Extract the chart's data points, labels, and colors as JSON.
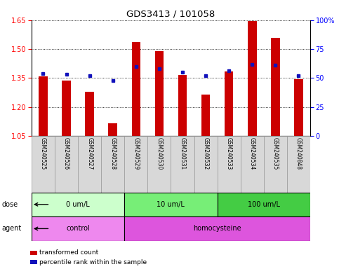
{
  "title": "GDS3413 / 101058",
  "samples": [
    "GSM240525",
    "GSM240526",
    "GSM240527",
    "GSM240528",
    "GSM240529",
    "GSM240530",
    "GSM240531",
    "GSM240532",
    "GSM240533",
    "GSM240534",
    "GSM240535",
    "GSM240848"
  ],
  "transformed_count": [
    1.36,
    1.335,
    1.28,
    1.115,
    1.535,
    1.49,
    1.365,
    1.265,
    1.385,
    1.645,
    1.56,
    1.345
  ],
  "percentile_rank": [
    54,
    53,
    52,
    48,
    60,
    58,
    55,
    52,
    56,
    62,
    61,
    52
  ],
  "ymin": 1.05,
  "ymax": 1.65,
  "y_ticks_left": [
    1.05,
    1.2,
    1.35,
    1.5,
    1.65
  ],
  "y_ticks_right": [
    0,
    25,
    50,
    75,
    100
  ],
  "bar_color": "#cc0000",
  "dot_color": "#1111bb",
  "dose_groups": [
    {
      "label": "0 um/L",
      "start": 0,
      "end": 4,
      "color": "#ccffcc"
    },
    {
      "label": "10 um/L",
      "start": 4,
      "end": 8,
      "color": "#77ee77"
    },
    {
      "label": "100 um/L",
      "start": 8,
      "end": 12,
      "color": "#44cc44"
    }
  ],
  "agent_groups": [
    {
      "label": "control",
      "start": 0,
      "end": 4,
      "color": "#ee88ee"
    },
    {
      "label": "homocysteine",
      "start": 4,
      "end": 12,
      "color": "#dd55dd"
    }
  ],
  "dose_label": "dose",
  "agent_label": "agent",
  "legend_red_label": "transformed count",
  "legend_blue_label": "percentile rank within the sample",
  "bar_width": 0.38
}
